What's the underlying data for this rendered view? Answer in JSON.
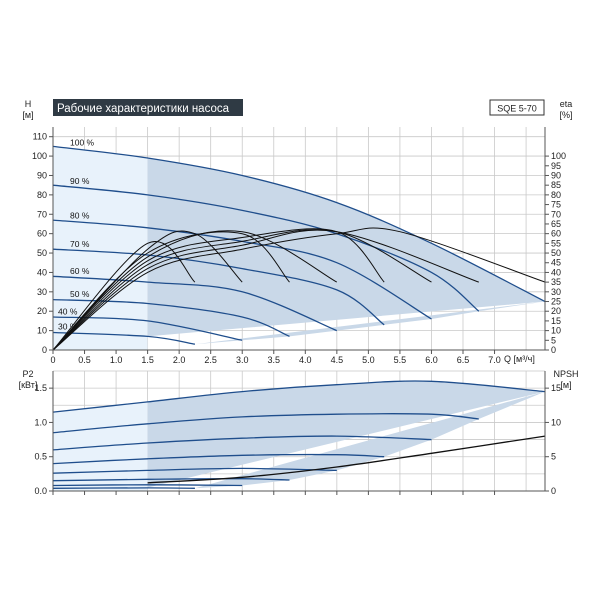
{
  "theme": {
    "grid": "#c9c9c9",
    "frame": "#555555",
    "curve": "#1f4e8c",
    "fill": "#c9d8e8",
    "fill_light": "#e8f2fb",
    "eff_curve": "#111111",
    "title_bg": "#2f3a44",
    "title_fg": "#ffffff"
  },
  "chart_data": [
    {
      "id": "qh",
      "type": "line",
      "title": "Рабочие характеристики насоса",
      "model": "SQE 5-70",
      "ylabel_left": [
        "H",
        "[м]"
      ],
      "ylabel_right": [
        "eta",
        "[%]"
      ],
      "xlabel": "Q [м³/ч]",
      "xlim": [
        0,
        7.8
      ],
      "ylim": [
        0,
        115
      ],
      "y2lim": [
        0,
        115
      ],
      "x_ticks": [
        "0",
        "0.5",
        "1.0",
        "1.5",
        "2.0",
        "2.5",
        "3.0",
        "3.5",
        "4.0",
        "4.5",
        "5.0",
        "5.5",
        "6.0",
        "6.5",
        "7.0"
      ],
      "y_ticks": [
        "0",
        "10",
        "20",
        "30",
        "40",
        "50",
        "60",
        "70",
        "80",
        "90",
        "100",
        "110"
      ],
      "y2_ticks": [
        "0",
        "5",
        "10",
        "15",
        "20",
        "25",
        "30",
        "35",
        "40",
        "45",
        "50",
        "55",
        "60",
        "65",
        "70",
        "75",
        "80",
        "85",
        "90",
        "95",
        "100"
      ],
      "grid": true,
      "operating_region_from_x": 1.5,
      "head_curves": [
        {
          "name": "100 %",
          "x": [
            0,
            1.5,
            3.0,
            4.5,
            6.0,
            7.8
          ],
          "y": [
            105,
            99,
            90,
            76,
            55,
            25
          ]
        },
        {
          "name": "90 %",
          "x": [
            0,
            1.5,
            3.0,
            4.5,
            6.0,
            6.75
          ],
          "y": [
            85,
            80,
            72,
            60,
            40,
            20
          ]
        },
        {
          "name": "80 %",
          "x": [
            0,
            1.5,
            3.0,
            4.5,
            6.0
          ],
          "y": [
            67,
            63,
            56,
            45,
            16
          ]
        },
        {
          "name": "70 %",
          "x": [
            0,
            1.5,
            3.0,
            4.5,
            5.25
          ],
          "y": [
            52,
            49,
            42,
            31,
            13
          ]
        },
        {
          "name": "60 %",
          "x": [
            0,
            1.5,
            3.0,
            4.5
          ],
          "y": [
            38,
            35,
            30,
            10
          ]
        },
        {
          "name": "50 %",
          "x": [
            0,
            1.5,
            3.0,
            3.75
          ],
          "y": [
            26,
            24,
            17,
            7
          ]
        },
        {
          "name": "40 %",
          "x": [
            0,
            1.5,
            3.0
          ],
          "y": [
            17,
            15,
            5
          ]
        },
        {
          "name": "30 %",
          "x": [
            0,
            1.5,
            2.25
          ],
          "y": [
            9,
            7,
            3
          ]
        }
      ],
      "efficiency_curves": [
        {
          "x": [
            0,
            1.5,
            2.25
          ],
          "y": [
            0,
            55,
            35
          ]
        },
        {
          "x": [
            0,
            1.5,
            2.25,
            3.0
          ],
          "y": [
            0,
            52,
            60,
            35
          ]
        },
        {
          "x": [
            0,
            1.5,
            3.0,
            3.75
          ],
          "y": [
            0,
            50,
            60,
            35
          ]
        },
        {
          "x": [
            0,
            1.5,
            3.0,
            4.5
          ],
          "y": [
            0,
            48,
            61,
            35
          ]
        },
        {
          "x": [
            0,
            1.5,
            3.0,
            4.5,
            5.25
          ],
          "y": [
            0,
            46,
            58,
            61,
            35
          ]
        },
        {
          "x": [
            0,
            1.5,
            3.0,
            4.5,
            6.0
          ],
          "y": [
            0,
            44,
            56,
            61,
            35
          ]
        },
        {
          "x": [
            0,
            1.5,
            3.0,
            4.5,
            6.75
          ],
          "y": [
            0,
            42,
            54,
            61,
            35
          ]
        },
        {
          "x": [
            0,
            1.5,
            3.0,
            4.5,
            5.5,
            7.8
          ],
          "y": [
            0,
            40,
            52,
            60,
            61,
            35
          ]
        }
      ]
    },
    {
      "id": "power",
      "type": "line",
      "ylabel_left": [
        "P2",
        "[кВт]"
      ],
      "ylabel_right": [
        "NPSH",
        "[м]"
      ],
      "xlim": [
        0,
        7.8
      ],
      "ylim": [
        0,
        1.75
      ],
      "y2lim": [
        0,
        17.5
      ],
      "y_ticks": [
        "0.0",
        "0.5",
        "1.0",
        "1.5"
      ],
      "y2_ticks": [
        "0",
        "5",
        "10",
        "15"
      ],
      "grid": true,
      "operating_region_from_x": 1.5,
      "power_curves": [
        {
          "x": [
            0,
            1.5,
            3.0,
            4.5,
            6.0,
            7.8
          ],
          "y": [
            1.15,
            1.3,
            1.45,
            1.55,
            1.6,
            1.45
          ]
        },
        {
          "x": [
            0,
            1.5,
            3.0,
            4.5,
            6.0,
            6.75
          ],
          "y": [
            0.85,
            0.98,
            1.08,
            1.12,
            1.12,
            1.05
          ]
        },
        {
          "x": [
            0,
            1.5,
            3.0,
            4.5,
            6.0
          ],
          "y": [
            0.6,
            0.7,
            0.77,
            0.8,
            0.75
          ]
        },
        {
          "x": [
            0,
            1.5,
            3.0,
            4.5,
            5.25
          ],
          "y": [
            0.4,
            0.47,
            0.52,
            0.53,
            0.5
          ]
        },
        {
          "x": [
            0,
            1.5,
            3.0,
            4.5
          ],
          "y": [
            0.26,
            0.3,
            0.33,
            0.3
          ]
        },
        {
          "x": [
            0,
            1.5,
            3.0,
            3.75
          ],
          "y": [
            0.15,
            0.17,
            0.18,
            0.16
          ]
        },
        {
          "x": [
            0,
            1.5,
            3.0
          ],
          "y": [
            0.08,
            0.09,
            0.08
          ]
        },
        {
          "x": [
            0,
            1.5,
            2.25
          ],
          "y": [
            0.04,
            0.045,
            0.04
          ]
        }
      ],
      "npsh_curve": {
        "x": [
          1.5,
          3.0,
          4.5,
          6.0,
          7.8
        ],
        "y": [
          1.2,
          2.0,
          3.5,
          5.5,
          8.0
        ]
      }
    }
  ]
}
